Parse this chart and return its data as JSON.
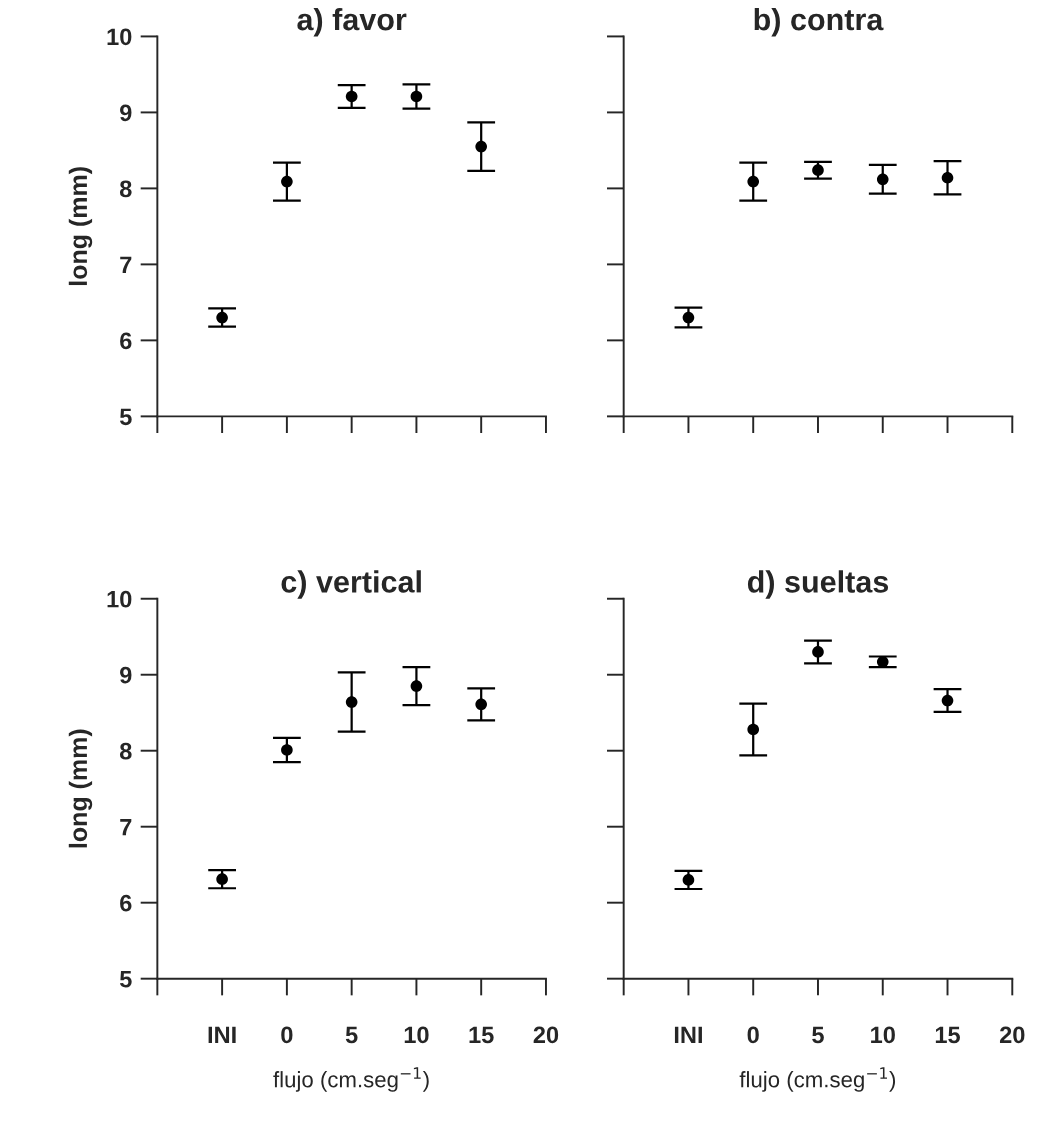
{
  "chart_data": [
    {
      "type": "scatter",
      "title": "a) favor",
      "ylabel": "long (mm)",
      "x": [
        -5,
        0,
        5,
        10,
        15
      ],
      "xlim": [
        -10,
        20
      ],
      "ylim": [
        5,
        10
      ],
      "xticks": [
        {
          "value": -10,
          "label": null
        },
        {
          "value": -5,
          "label": null
        },
        {
          "value": 0,
          "label": null
        },
        {
          "value": 5,
          "label": null
        },
        {
          "value": 10,
          "label": null
        },
        {
          "value": 15,
          "label": null
        },
        {
          "value": 20,
          "label": null
        }
      ],
      "yticks": [
        5,
        6,
        7,
        8,
        9,
        10
      ],
      "tick_labels": "y",
      "marker": "circle",
      "grid": false,
      "legend": false,
      "series": [
        {
          "color": "#000000",
          "values": [
            6.3,
            8.09,
            9.21,
            9.21,
            8.55
          ],
          "errors": [
            0.12,
            0.25,
            0.15,
            0.16,
            0.32
          ]
        }
      ]
    },
    {
      "type": "scatter",
      "title": "b) contra",
      "x": [
        -5,
        0,
        5,
        10,
        15
      ],
      "xlim": [
        -10,
        20
      ],
      "ylim": [
        5,
        10
      ],
      "xticks": [
        {
          "value": -10,
          "label": null
        },
        {
          "value": -5,
          "label": null
        },
        {
          "value": 0,
          "label": null
        },
        {
          "value": 5,
          "label": null
        },
        {
          "value": 10,
          "label": null
        },
        {
          "value": 15,
          "label": null
        },
        {
          "value": 20,
          "label": null
        }
      ],
      "yticks": [
        5,
        6,
        7,
        8,
        9,
        10
      ],
      "tick_labels": false,
      "marker": "circle",
      "grid": false,
      "legend": false,
      "series": [
        {
          "color": "#000000",
          "values": [
            6.3,
            8.09,
            8.24,
            8.12,
            8.14
          ],
          "errors": [
            0.13,
            0.25,
            0.11,
            0.19,
            0.22
          ]
        }
      ]
    },
    {
      "type": "scatter",
      "title": "c) vertical",
      "ylabel": "long (mm)",
      "xlabel": "flujo (cm.seg$^{−1}$)",
      "x": [
        -5,
        0,
        5,
        10,
        15
      ],
      "xlim": [
        -10,
        20
      ],
      "ylim": [
        5,
        10
      ],
      "xticks": [
        {
          "value": -10,
          "label": null
        },
        {
          "value": -5,
          "label": "INI"
        },
        0,
        5,
        10,
        15,
        20
      ],
      "yticks": [
        5,
        6,
        7,
        8,
        9,
        10
      ],
      "marker": "circle",
      "grid": false,
      "legend": false,
      "series": [
        {
          "color": "#000000",
          "values": [
            6.31,
            8.01,
            8.64,
            8.85,
            8.61
          ],
          "errors": [
            0.12,
            0.16,
            0.39,
            0.25,
            0.21
          ]
        }
      ]
    },
    {
      "type": "scatter",
      "title": "d) sueltas",
      "xlabel": "flujo (cm.seg$^{−1}$)",
      "x": [
        -5,
        0,
        5,
        10,
        15
      ],
      "xlim": [
        -10,
        20
      ],
      "ylim": [
        5,
        10
      ],
      "xticks": [
        {
          "value": -10,
          "label": null
        },
        {
          "value": -5,
          "label": "INI"
        },
        0,
        5,
        10,
        15,
        20
      ],
      "yticks": [
        5,
        6,
        7,
        8,
        9,
        10
      ],
      "tick_labels": "x",
      "marker": "circle",
      "grid": false,
      "legend": false,
      "series": [
        {
          "color": "#000000",
          "values": [
            6.3,
            8.28,
            9.3,
            9.17,
            8.66
          ],
          "errors": [
            0.12,
            0.34,
            0.15,
            0.07,
            0.15
          ]
        }
      ]
    }
  ]
}
